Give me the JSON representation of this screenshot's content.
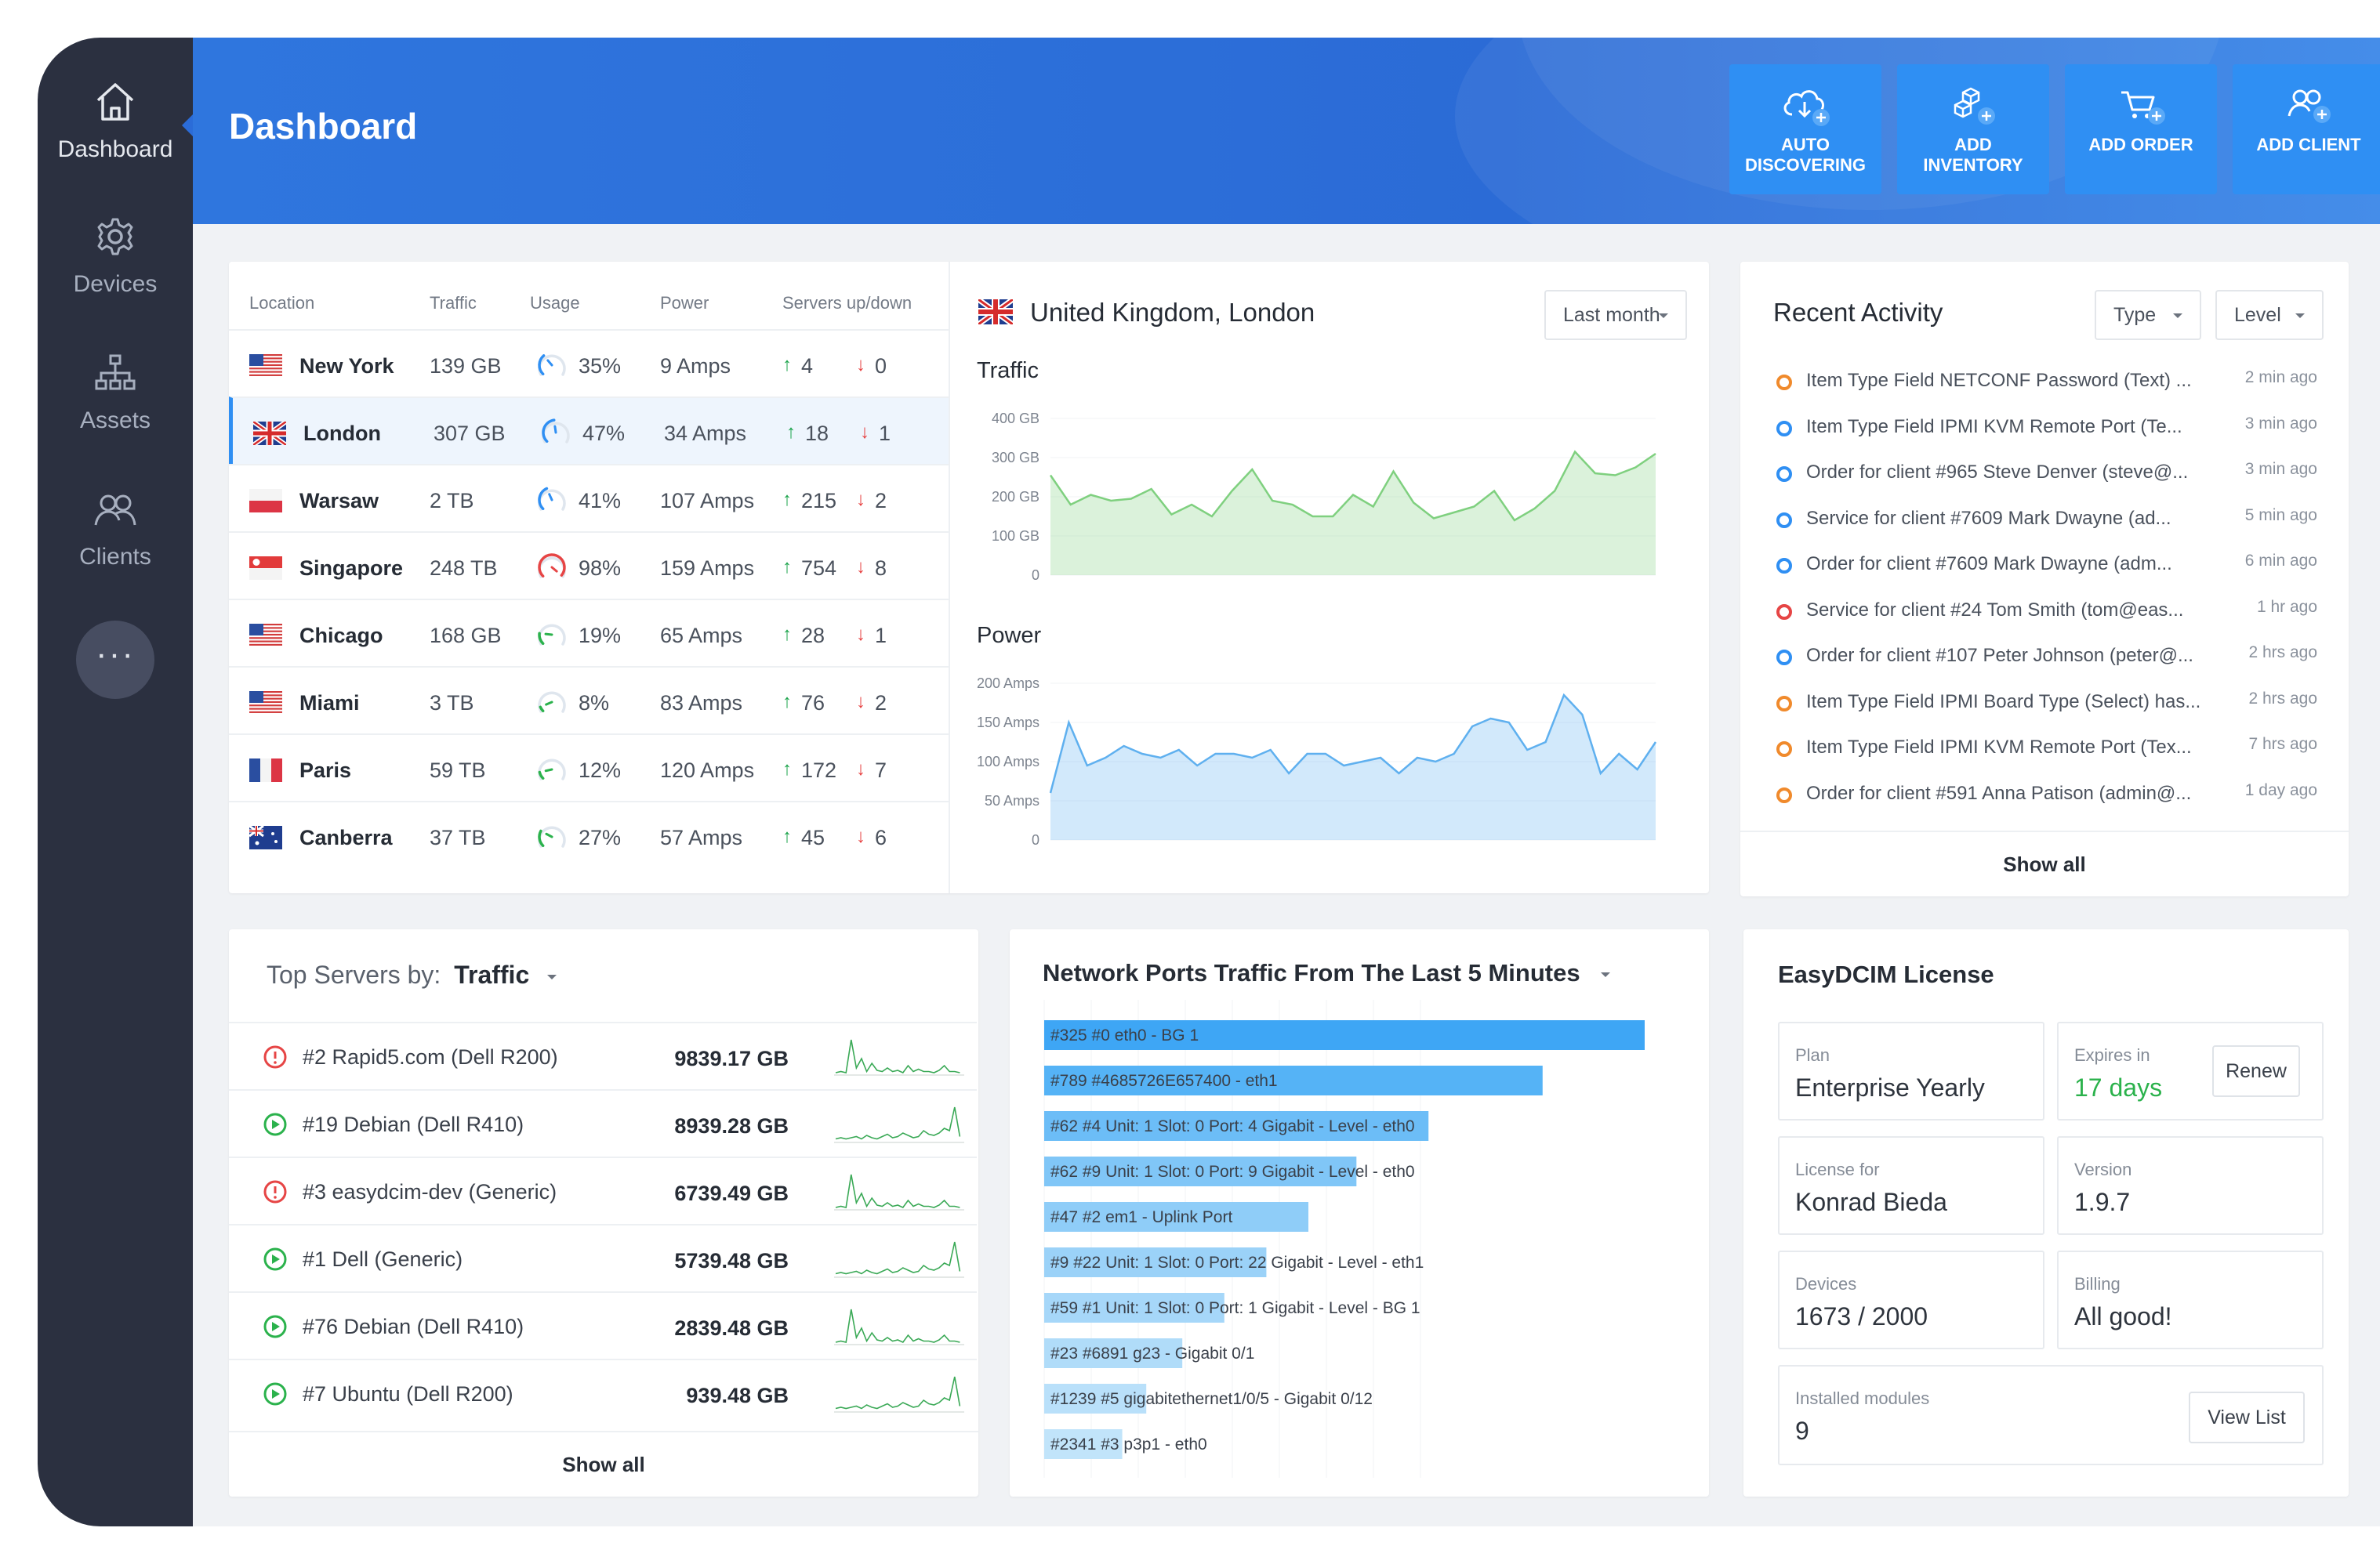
{
  "sidebar": {
    "items": [
      {
        "label": "Dashboard",
        "icon": "home-icon"
      },
      {
        "label": "Devices",
        "icon": "gear-icon"
      },
      {
        "label": "Assets",
        "icon": "sitemap-icon"
      },
      {
        "label": "Clients",
        "icon": "users-icon"
      }
    ],
    "more_label": "···"
  },
  "header": {
    "title": "Dashboard",
    "buttons": [
      {
        "label_1": "AUTO",
        "label_2": "DISCOVERING",
        "icon": "cloud-download-icon"
      },
      {
        "label_1": "ADD",
        "label_2": "INVENTORY",
        "icon": "cubes-icon"
      },
      {
        "label_1": "ADD ORDER",
        "label_2": "",
        "icon": "cart-icon"
      },
      {
        "label_1": "ADD CLIENT",
        "label_2": "",
        "icon": "users-add-icon"
      }
    ]
  },
  "locations": {
    "headers": [
      "Location",
      "Traffic",
      "Usage",
      "Power",
      "Servers up/down"
    ],
    "rows": [
      {
        "city": "New York",
        "flag": "us",
        "traffic": "139 GB",
        "usage": "35%",
        "usage_value": 35,
        "power": "9 Amps",
        "up": "4",
        "down": "0"
      },
      {
        "city": "London",
        "flag": "uk",
        "traffic": "307 GB",
        "usage": "47%",
        "usage_value": 47,
        "power": "34 Amps",
        "up": "18",
        "down": "1"
      },
      {
        "city": "Warsaw",
        "flag": "pl",
        "traffic": "2 TB",
        "usage": "41%",
        "usage_value": 41,
        "power": "107 Amps",
        "up": "215",
        "down": "2"
      },
      {
        "city": "Singapore",
        "flag": "sg",
        "traffic": "248 TB",
        "usage": "98%",
        "usage_value": 98,
        "power": "159 Amps",
        "up": "754",
        "down": "8"
      },
      {
        "city": "Chicago",
        "flag": "us",
        "traffic": "168 GB",
        "usage": "19%",
        "usage_value": 19,
        "power": "65 Amps",
        "up": "28",
        "down": "1"
      },
      {
        "city": "Miami",
        "flag": "us",
        "traffic": "3 TB",
        "usage": "8%",
        "usage_value": 8,
        "power": "83 Amps",
        "up": "76",
        "down": "2"
      },
      {
        "city": "Paris",
        "flag": "fr",
        "traffic": "59 TB",
        "usage": "12%",
        "usage_value": 12,
        "power": "120 Amps",
        "up": "172",
        "down": "7"
      },
      {
        "city": "Canberra",
        "flag": "au",
        "traffic": "37 TB",
        "usage": "27%",
        "usage_value": 27,
        "power": "57 Amps",
        "up": "45",
        "down": "6"
      }
    ]
  },
  "location_detail": {
    "title": "United Kingdom, London",
    "period": "Last month"
  },
  "chart_data": [
    {
      "type": "area",
      "title": "Traffic",
      "ylim": [
        0,
        400
      ],
      "yticks": [
        "400 GB",
        "300 GB",
        "200 GB",
        "100 GB",
        "0"
      ],
      "color": "#7fd07f",
      "values": [
        255,
        180,
        205,
        190,
        195,
        220,
        155,
        180,
        150,
        215,
        270,
        190,
        180,
        150,
        150,
        205,
        175,
        265,
        185,
        145,
        160,
        175,
        215,
        140,
        170,
        215,
        315,
        260,
        255,
        275,
        310
      ]
    },
    {
      "type": "area",
      "title": "Power",
      "ylim": [
        0,
        200
      ],
      "yticks": [
        "200 Amps",
        "150 Amps",
        "100 Amps",
        "50 Amps",
        "0"
      ],
      "color": "#5fb0ef",
      "values": [
        60,
        150,
        95,
        105,
        120,
        110,
        105,
        115,
        95,
        110,
        110,
        105,
        115,
        85,
        110,
        110,
        95,
        100,
        105,
        85,
        105,
        100,
        110,
        145,
        155,
        150,
        115,
        125,
        185,
        160,
        85,
        110,
        90,
        125
      ]
    }
  ],
  "activity": {
    "title": "Recent Activity",
    "filters": [
      "Type",
      "Level"
    ],
    "items": [
      {
        "text": "Item Type Field NETCONF Password (Text) ...",
        "time": "2 min ago",
        "color": "orange"
      },
      {
        "text": "Item Type Field IPMI KVM Remote Port (Te...",
        "time": "3 min ago",
        "color": "blue"
      },
      {
        "text": "Order for client #965 Steve Denver (steve@...",
        "time": "3 min ago",
        "color": "blue"
      },
      {
        "text": "Service for client #7609 Mark Dwayne (ad...",
        "time": "5 min ago",
        "color": "blue"
      },
      {
        "text": "Order for client #7609 Mark Dwayne (adm...",
        "time": "6 min ago",
        "color": "blue"
      },
      {
        "text": "Service for client #24 Tom Smith (tom@eas...",
        "time": "1 hr ago",
        "color": "red"
      },
      {
        "text": "Order for client #107 Peter Johnson (peter@...",
        "time": "2 hrs ago",
        "color": "blue"
      },
      {
        "text": "Item Type Field IPMI Board Type (Select) has...",
        "time": "2 hrs ago",
        "color": "orange"
      },
      {
        "text": "Item Type Field IPMI KVM Remote Port (Tex...",
        "time": "7 hrs ago",
        "color": "orange"
      },
      {
        "text": "Order for client #591 Anna Patison (admin@...",
        "time": "1 day ago",
        "color": "orange"
      }
    ],
    "show_all": "Show all"
  },
  "top_servers": {
    "label": "Top Servers by:",
    "metric": "Traffic",
    "rows": [
      {
        "name": "#2 Rapid5.com (Dell R200)",
        "value": "9839.17 GB",
        "status": "error"
      },
      {
        "name": "#19 Debian (Dell R410)",
        "value": "8939.28 GB",
        "status": "ok"
      },
      {
        "name": "#3 easydcim-dev (Generic)",
        "value": "6739.49 GB",
        "status": "error"
      },
      {
        "name": "#1 Dell (Generic)",
        "value": "5739.48 GB",
        "status": "ok"
      },
      {
        "name": "#76 Debian (Dell R410)",
        "value": "2839.48 GB",
        "status": "ok"
      },
      {
        "name": "#7 Ubuntu (Dell R200)",
        "value": "939.48 GB",
        "status": "ok"
      }
    ],
    "show_all": "Show all"
  },
  "ports": {
    "title": "Network Ports Traffic From The Last 5 Minutes",
    "bars": [
      {
        "label": "#325 #0 eth0 - BG 1",
        "value": 1.0,
        "color": "#3ea6f5"
      },
      {
        "label": "#789 #4685726E657400 - eth1",
        "value": 0.83,
        "color": "#55b3f6"
      },
      {
        "label": "#62 #4 Unit: 1 Slot: 0 Port: 4 Gigabit - Level - eth0",
        "value": 0.64,
        "color": "#6cbdf7"
      },
      {
        "label": "#62 #9 Unit: 1 Slot: 0 Port: 9 Gigabit - Level - eth0",
        "value": 0.52,
        "color": "#80c6f7"
      },
      {
        "label": "#47 #2 em1 - Uplink Port",
        "value": 0.44,
        "color": "#8fcdf8"
      },
      {
        "label": "#9 #22 Unit: 1 Slot: 0 Port: 22 Gigabit - Level - eth1",
        "value": 0.37,
        "color": "#9bd2f8"
      },
      {
        "label": "#59 #1 Unit: 1 Slot: 0 Port: 1 Gigabit - Level - BG 1",
        "value": 0.3,
        "color": "#a6d7f9"
      },
      {
        "label": "#23 #6891 g23 - Gigabit 0/1",
        "value": 0.23,
        "color": "#b0dcf9"
      },
      {
        "label": "#1239 #5 gigabitethernet1/0/5 - Gigabit 0/12",
        "value": 0.17,
        "color": "#b9e0fa"
      },
      {
        "label": "#2341 #3 p3p1 - eth0",
        "value": 0.13,
        "color": "#c1e4fa"
      }
    ]
  },
  "license": {
    "title": "EasyDCIM License",
    "plan_label": "Plan",
    "plan": "Enterprise Yearly",
    "expires_label": "Expires in",
    "expires": "17 days",
    "renew": "Renew",
    "for_label": "License for",
    "for": "Konrad Bieda",
    "version_label": "Version",
    "version": "1.9.7",
    "devices_label": "Devices",
    "devices": "1673 / 2000",
    "billing_label": "Billing",
    "billing": "All good!",
    "modules_label": "Installed modules",
    "modules": "9",
    "view_list": "View List"
  }
}
